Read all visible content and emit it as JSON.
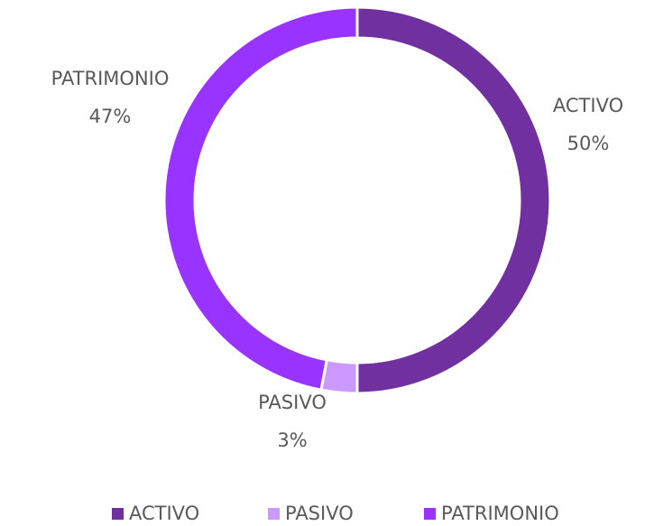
{
  "chart_data": {
    "type": "donut",
    "categories": [
      "ACTIVO",
      "PASIVO",
      "PATRIMONIO"
    ],
    "values": [
      50,
      3,
      47
    ],
    "value_labels": [
      "50%",
      "3%",
      "47%"
    ],
    "colors": [
      "#7030a0",
      "#cc99ff",
      "#9933ff"
    ],
    "legend": "bottom"
  }
}
